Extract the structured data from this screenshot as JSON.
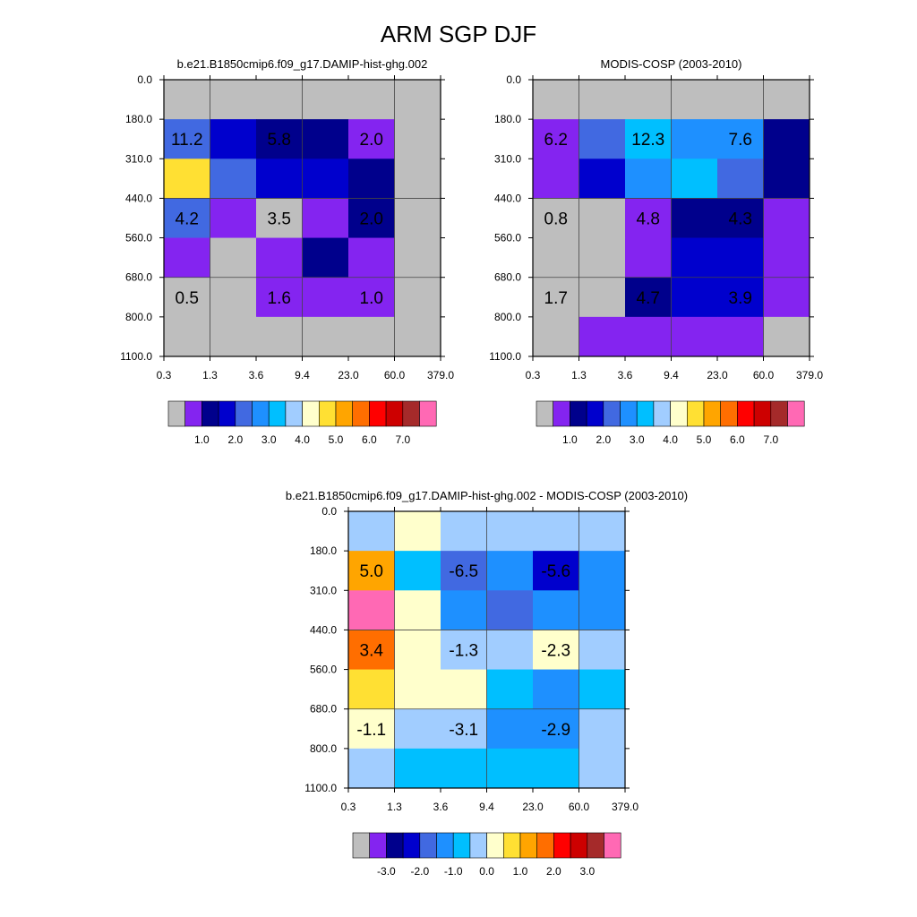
{
  "title": "ARM SGP DJF",
  "palette": {
    "gray": "#BEBEBE",
    "violet": "#8424F0",
    "navy": "#00008C",
    "blue": "#0000CD",
    "royal": "#4169E1",
    "dodger": "#1E90FF",
    "sky": "#00BFFF",
    "light": "#A1CDFF",
    "cream": "#FFFFCC",
    "gold": "#FFE033",
    "orange": "#FFA500",
    "darkorange": "#FF6E00",
    "red": "#FF0000",
    "crimson": "#CD0000",
    "brown": "#A52A2A",
    "pink": "#FF69B4"
  },
  "chart_data": [
    {
      "type": "heatmap",
      "title": "b.e21.B1850cmip6.f09_g17.DAMIP-hist-ghg.002",
      "x_ticks": [
        "0.3",
        "1.3",
        "3.6",
        "9.4",
        "23.0",
        "60.0",
        "379.0"
      ],
      "y_ticks": [
        "0.0",
        "180.0",
        "310.0",
        "440.0",
        "560.0",
        "680.0",
        "800.0",
        "1100.0"
      ],
      "cells": [
        [
          "gray",
          "gray",
          "gray",
          "gray",
          "gray",
          "gray"
        ],
        [
          "royal",
          "blue",
          "navy",
          "navy",
          "violet",
          "gray"
        ],
        [
          "gold",
          "royal",
          "blue",
          "blue",
          "navy",
          "gray"
        ],
        [
          "royal",
          "violet",
          "gray",
          "violet",
          "navy",
          "gray"
        ],
        [
          "violet",
          "gray",
          "violet",
          "navy",
          "violet",
          "gray"
        ],
        [
          "gray",
          "gray",
          "violet",
          "violet",
          "violet",
          "gray"
        ],
        [
          "gray",
          "gray",
          "gray",
          "gray",
          "gray",
          "gray"
        ]
      ],
      "annotations": [
        {
          "col": 0.5,
          "row": 1.5,
          "text": "11.2"
        },
        {
          "col": 2.5,
          "row": 1.5,
          "text": "5.8"
        },
        {
          "col": 4.5,
          "row": 1.5,
          "text": "2.0"
        },
        {
          "col": 0.5,
          "row": 3.5,
          "text": "4.2"
        },
        {
          "col": 2.5,
          "row": 3.5,
          "text": "3.5"
        },
        {
          "col": 4.5,
          "row": 3.5,
          "text": "2.0"
        },
        {
          "col": 0.5,
          "row": 5.5,
          "text": "0.5"
        },
        {
          "col": 2.5,
          "row": 5.5,
          "text": "1.6"
        },
        {
          "col": 4.5,
          "row": 5.5,
          "text": "1.0"
        }
      ],
      "colorbar": {
        "colors": [
          "gray",
          "violet",
          "navy",
          "blue",
          "royal",
          "dodger",
          "sky",
          "light",
          "cream",
          "gold",
          "orange",
          "darkorange",
          "red",
          "crimson",
          "brown",
          "pink"
        ],
        "labels": [
          "1.0",
          "2.0",
          "3.0",
          "4.0",
          "5.0",
          "6.0",
          "7.0"
        ]
      }
    },
    {
      "type": "heatmap",
      "title": "MODIS-COSP (2003-2010)",
      "x_ticks": [
        "0.3",
        "1.3",
        "3.6",
        "9.4",
        "23.0",
        "60.0",
        "379.0"
      ],
      "y_ticks": [
        "0.0",
        "180.0",
        "310.0",
        "440.0",
        "560.0",
        "680.0",
        "800.0",
        "1100.0"
      ],
      "cells": [
        [
          "gray",
          "gray",
          "gray",
          "gray",
          "gray",
          "gray"
        ],
        [
          "violet",
          "royal",
          "sky",
          "dodger",
          "dodger",
          "navy"
        ],
        [
          "violet",
          "blue",
          "dodger",
          "sky",
          "royal",
          "navy"
        ],
        [
          "gray",
          "gray",
          "violet",
          "navy",
          "navy",
          "violet"
        ],
        [
          "gray",
          "gray",
          "violet",
          "blue",
          "blue",
          "violet"
        ],
        [
          "gray",
          "gray",
          "navy",
          "blue",
          "blue",
          "violet"
        ],
        [
          "gray",
          "violet",
          "violet",
          "violet",
          "violet",
          "gray"
        ]
      ],
      "annotations": [
        {
          "col": 0.5,
          "row": 1.5,
          "text": "6.2"
        },
        {
          "col": 2.5,
          "row": 1.5,
          "text": "12.3"
        },
        {
          "col": 4.5,
          "row": 1.5,
          "text": "7.6"
        },
        {
          "col": 0.5,
          "row": 3.5,
          "text": "0.8"
        },
        {
          "col": 2.5,
          "row": 3.5,
          "text": "4.8"
        },
        {
          "col": 4.5,
          "row": 3.5,
          "text": "4.3"
        },
        {
          "col": 0.5,
          "row": 5.5,
          "text": "1.7"
        },
        {
          "col": 2.5,
          "row": 5.5,
          "text": "4.7"
        },
        {
          "col": 4.5,
          "row": 5.5,
          "text": "3.9"
        }
      ],
      "colorbar": {
        "colors": [
          "gray",
          "violet",
          "navy",
          "blue",
          "royal",
          "dodger",
          "sky",
          "light",
          "cream",
          "gold",
          "orange",
          "darkorange",
          "red",
          "crimson",
          "brown",
          "pink"
        ],
        "labels": [
          "1.0",
          "2.0",
          "3.0",
          "4.0",
          "5.0",
          "6.0",
          "7.0"
        ]
      }
    },
    {
      "type": "heatmap",
      "title": "b.e21.B1850cmip6.f09_g17.DAMIP-hist-ghg.002 - MODIS-COSP (2003-2010)",
      "x_ticks": [
        "0.3",
        "1.3",
        "3.6",
        "9.4",
        "23.0",
        "60.0",
        "379.0"
      ],
      "y_ticks": [
        "0.0",
        "180.0",
        "310.0",
        "440.0",
        "560.0",
        "680.0",
        "800.0",
        "1100.0"
      ],
      "cells": [
        [
          "light",
          "cream",
          "light",
          "light",
          "light",
          "light"
        ],
        [
          "orange",
          "sky",
          "royal",
          "dodger",
          "blue",
          "dodger"
        ],
        [
          "pink",
          "cream",
          "dodger",
          "royal",
          "dodger",
          "dodger"
        ],
        [
          "darkorange",
          "cream",
          "light",
          "light",
          "cream",
          "light"
        ],
        [
          "gold",
          "cream",
          "cream",
          "sky",
          "dodger",
          "sky"
        ],
        [
          "cream",
          "light",
          "light",
          "dodger",
          "dodger",
          "light"
        ],
        [
          "light",
          "sky",
          "sky",
          "sky",
          "sky",
          "light"
        ]
      ],
      "annotations": [
        {
          "col": 0.5,
          "row": 1.5,
          "text": "5.0"
        },
        {
          "col": 2.5,
          "row": 1.5,
          "text": "-6.5"
        },
        {
          "col": 4.5,
          "row": 1.5,
          "text": "-5.6"
        },
        {
          "col": 0.5,
          "row": 3.5,
          "text": "3.4"
        },
        {
          "col": 2.5,
          "row": 3.5,
          "text": "-1.3"
        },
        {
          "col": 4.5,
          "row": 3.5,
          "text": "-2.3"
        },
        {
          "col": 0.5,
          "row": 5.5,
          "text": "-1.1"
        },
        {
          "col": 2.5,
          "row": 5.5,
          "text": "-3.1"
        },
        {
          "col": 4.5,
          "row": 5.5,
          "text": "-2.9"
        }
      ],
      "colorbar": {
        "colors": [
          "gray",
          "violet",
          "navy",
          "blue",
          "royal",
          "dodger",
          "sky",
          "light",
          "cream",
          "gold",
          "orange",
          "darkorange",
          "red",
          "crimson",
          "brown",
          "pink"
        ],
        "labels": [
          "-3.0",
          "-2.0",
          "-1.0",
          "0.0",
          "1.0",
          "2.0",
          "3.0"
        ]
      }
    }
  ]
}
